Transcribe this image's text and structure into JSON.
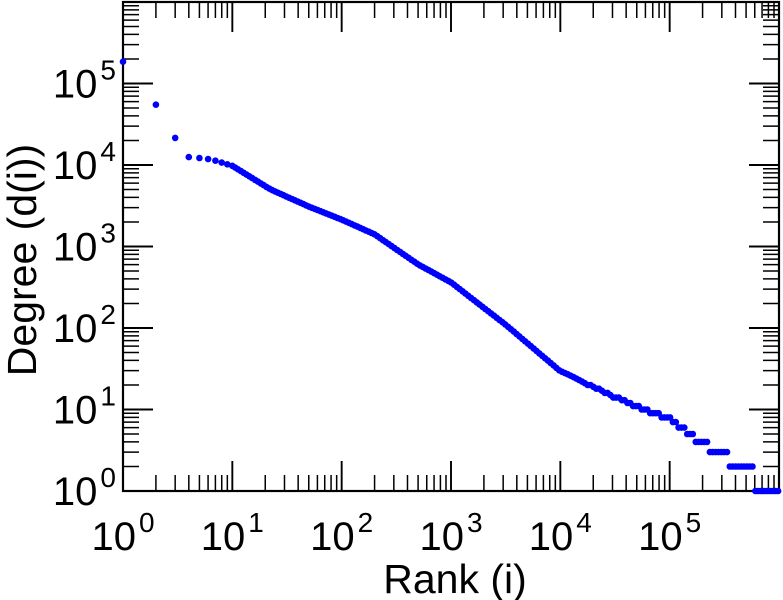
{
  "chart_data": {
    "type": "scatter",
    "title": "",
    "xlabel": "Rank (i)",
    "ylabel": "Degree (d(i))",
    "x_scale": "log",
    "y_scale": "log",
    "xlim": [
      1,
      1000000
    ],
    "ylim": [
      1,
      1000000
    ],
    "x_tick_base": "10",
    "y_tick_base": "10",
    "x_tick_exponents": [
      0,
      1,
      2,
      3,
      4,
      5
    ],
    "y_tick_exponents": [
      0,
      1,
      2,
      3,
      4,
      5
    ],
    "minor_ticks_per_decade": [
      2,
      3,
      4,
      5,
      6,
      7,
      8,
      9
    ],
    "grid": false,
    "legend": null,
    "frame_color": "#000000",
    "background_color": "#ffffff",
    "marker": {
      "shape": "circle",
      "color": "#0000ff",
      "radius_px": 3.3
    },
    "head_points": [
      [
        1,
        185000
      ],
      [
        2,
        55000
      ],
      [
        3,
        21500
      ],
      [
        4,
        12500
      ],
      [
        5,
        12200
      ],
      [
        6,
        11800
      ],
      [
        7,
        11300
      ],
      [
        8,
        10700
      ],
      [
        9,
        10200
      ]
    ],
    "curve_anchors_log10": [
      [
        1.0,
        3.99
      ],
      [
        1.35,
        3.7
      ],
      [
        1.7,
        3.49
      ],
      [
        2.0,
        3.33
      ],
      [
        2.3,
        3.15
      ],
      [
        2.7,
        2.78
      ],
      [
        3.0,
        2.56
      ],
      [
        3.5,
        2.04
      ],
      [
        4.0,
        1.47
      ],
      [
        4.5,
        1.15
      ],
      [
        5.0,
        0.88
      ],
      [
        5.42,
        0.477
      ],
      [
        5.7,
        0.301
      ],
      [
        5.9,
        0.0
      ],
      [
        6.0,
        0.0
      ]
    ],
    "sample_step_log10": 0.026,
    "integer_rounding_below_degree": 30,
    "tail_min_degree": 1,
    "max_rank_log10": 6.0
  }
}
